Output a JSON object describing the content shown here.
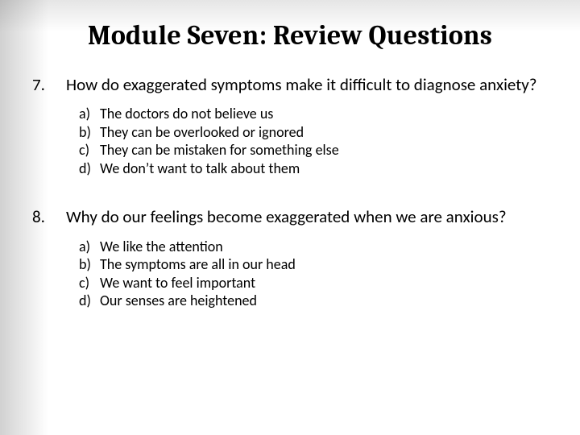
{
  "title": "Module Seven: Review Questions",
  "title_fontsize": 34,
  "question_fontsize": 21,
  "option_fontsize": 18,
  "text_color": "#000000",
  "background_color": "#ffffff",
  "questions": [
    {
      "number": "7.",
      "text": "How do exaggerated symptoms make it difficult to diagnose anxiety?",
      "options": [
        {
          "letter": "a)",
          "text": "The doctors do not believe us"
        },
        {
          "letter": "b)",
          "text": "They can be overlooked or ignored"
        },
        {
          "letter": "c)",
          "text": "They can be mistaken for something else"
        },
        {
          "letter": "d)",
          "text": "We don’t want to talk about them"
        }
      ]
    },
    {
      "number": "8.",
      "text": "Why do our feelings become exaggerated when we are anxious?",
      "options": [
        {
          "letter": "a)",
          "text": "We like the attention"
        },
        {
          "letter": "b)",
          "text": "The symptoms are all in our head"
        },
        {
          "letter": "c)",
          "text": "We want to feel important"
        },
        {
          "letter": "d)",
          "text": "Our senses are heightened"
        }
      ]
    }
  ]
}
